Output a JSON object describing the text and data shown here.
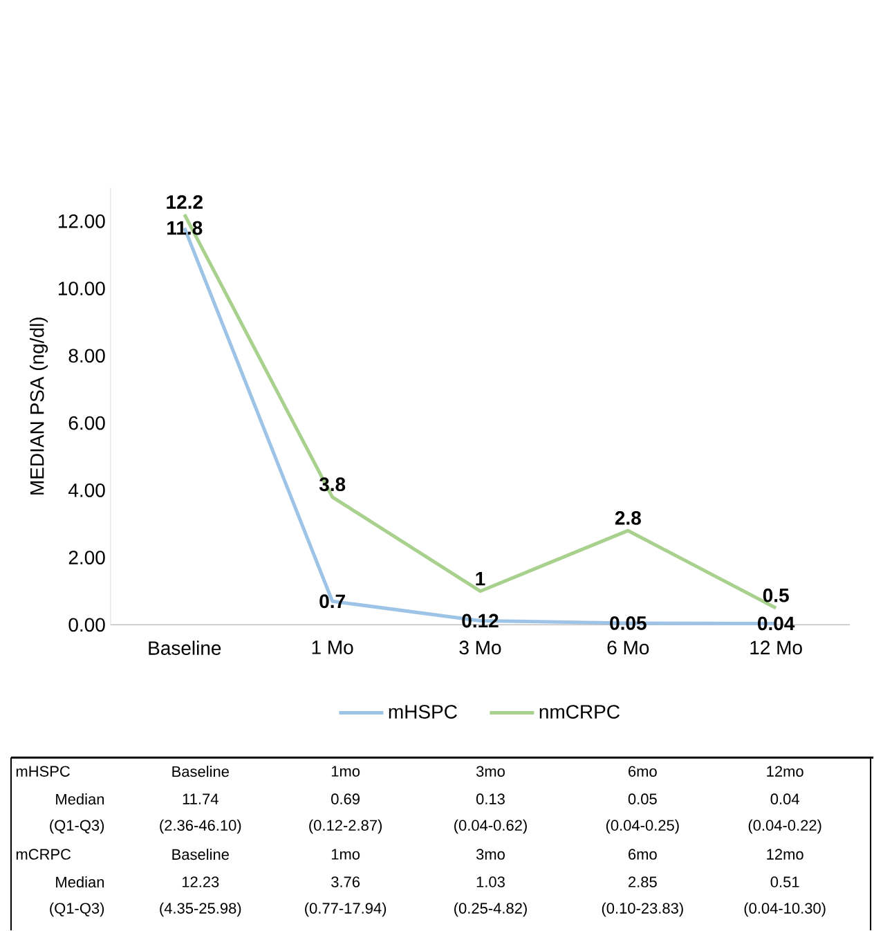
{
  "chart_data": {
    "type": "line",
    "ylabel": "MEDIAN PSA (ng/dl)",
    "categories": [
      "Baseline",
      "1 Mo",
      "3 Mo",
      "6 Mo",
      "12 Mo"
    ],
    "series": [
      {
        "name": "mHSPC",
        "color": "#9dc3e6",
        "values": [
          11.8,
          0.7,
          0.12,
          0.05,
          0.04
        ],
        "value_labels": [
          "11.8",
          "0.7",
          "0.12",
          "0.05",
          "0.04"
        ]
      },
      {
        "name": "nmCRPC",
        "color": "#a9d18e",
        "values": [
          12.2,
          3.8,
          1,
          2.8,
          0.5
        ],
        "value_labels": [
          "12.2",
          "3.8",
          "1",
          "2.8",
          "0.5"
        ]
      }
    ],
    "ylim": [
      0,
      13
    ],
    "yticks": [
      {
        "value": 0,
        "label": "0.00"
      },
      {
        "value": 2,
        "label": "2.00"
      },
      {
        "value": 4,
        "label": "4.00"
      },
      {
        "value": 6,
        "label": "6.00"
      },
      {
        "value": 8,
        "label": "8.00"
      },
      {
        "value": 10,
        "label": "10.00"
      },
      {
        "value": 12,
        "label": "12.00"
      }
    ],
    "legend": "bottom",
    "line_style": "solid",
    "marker": "none",
    "annotations": [
      "mHSPC",
      "Baseline",
      "1mo",
      "3mo",
      "6mo",
      "12mo",
      "Median",
      "11.74",
      "0.69",
      "0.13",
      "0.05",
      "0.04",
      "(Q1-Q3)",
      "(2.36-46.10)",
      "(0.12-2.87)",
      "(0.04-0.62)",
      "(0.04-0.25)",
      "(0.04-0.22)",
      "mCRPC",
      "Baseline",
      "1mo",
      "3mo",
      "6mo",
      "12mo",
      "Median",
      "12.23",
      "3.76",
      "1.03",
      "2.85",
      "0.51",
      "(Q1-Q3)",
      "(4.35-25.98)",
      "(0.77-17.94)",
      "(0.25-4.82)",
      "(0.10-23.83)",
      "(0.04-10.30)"
    ]
  }
}
